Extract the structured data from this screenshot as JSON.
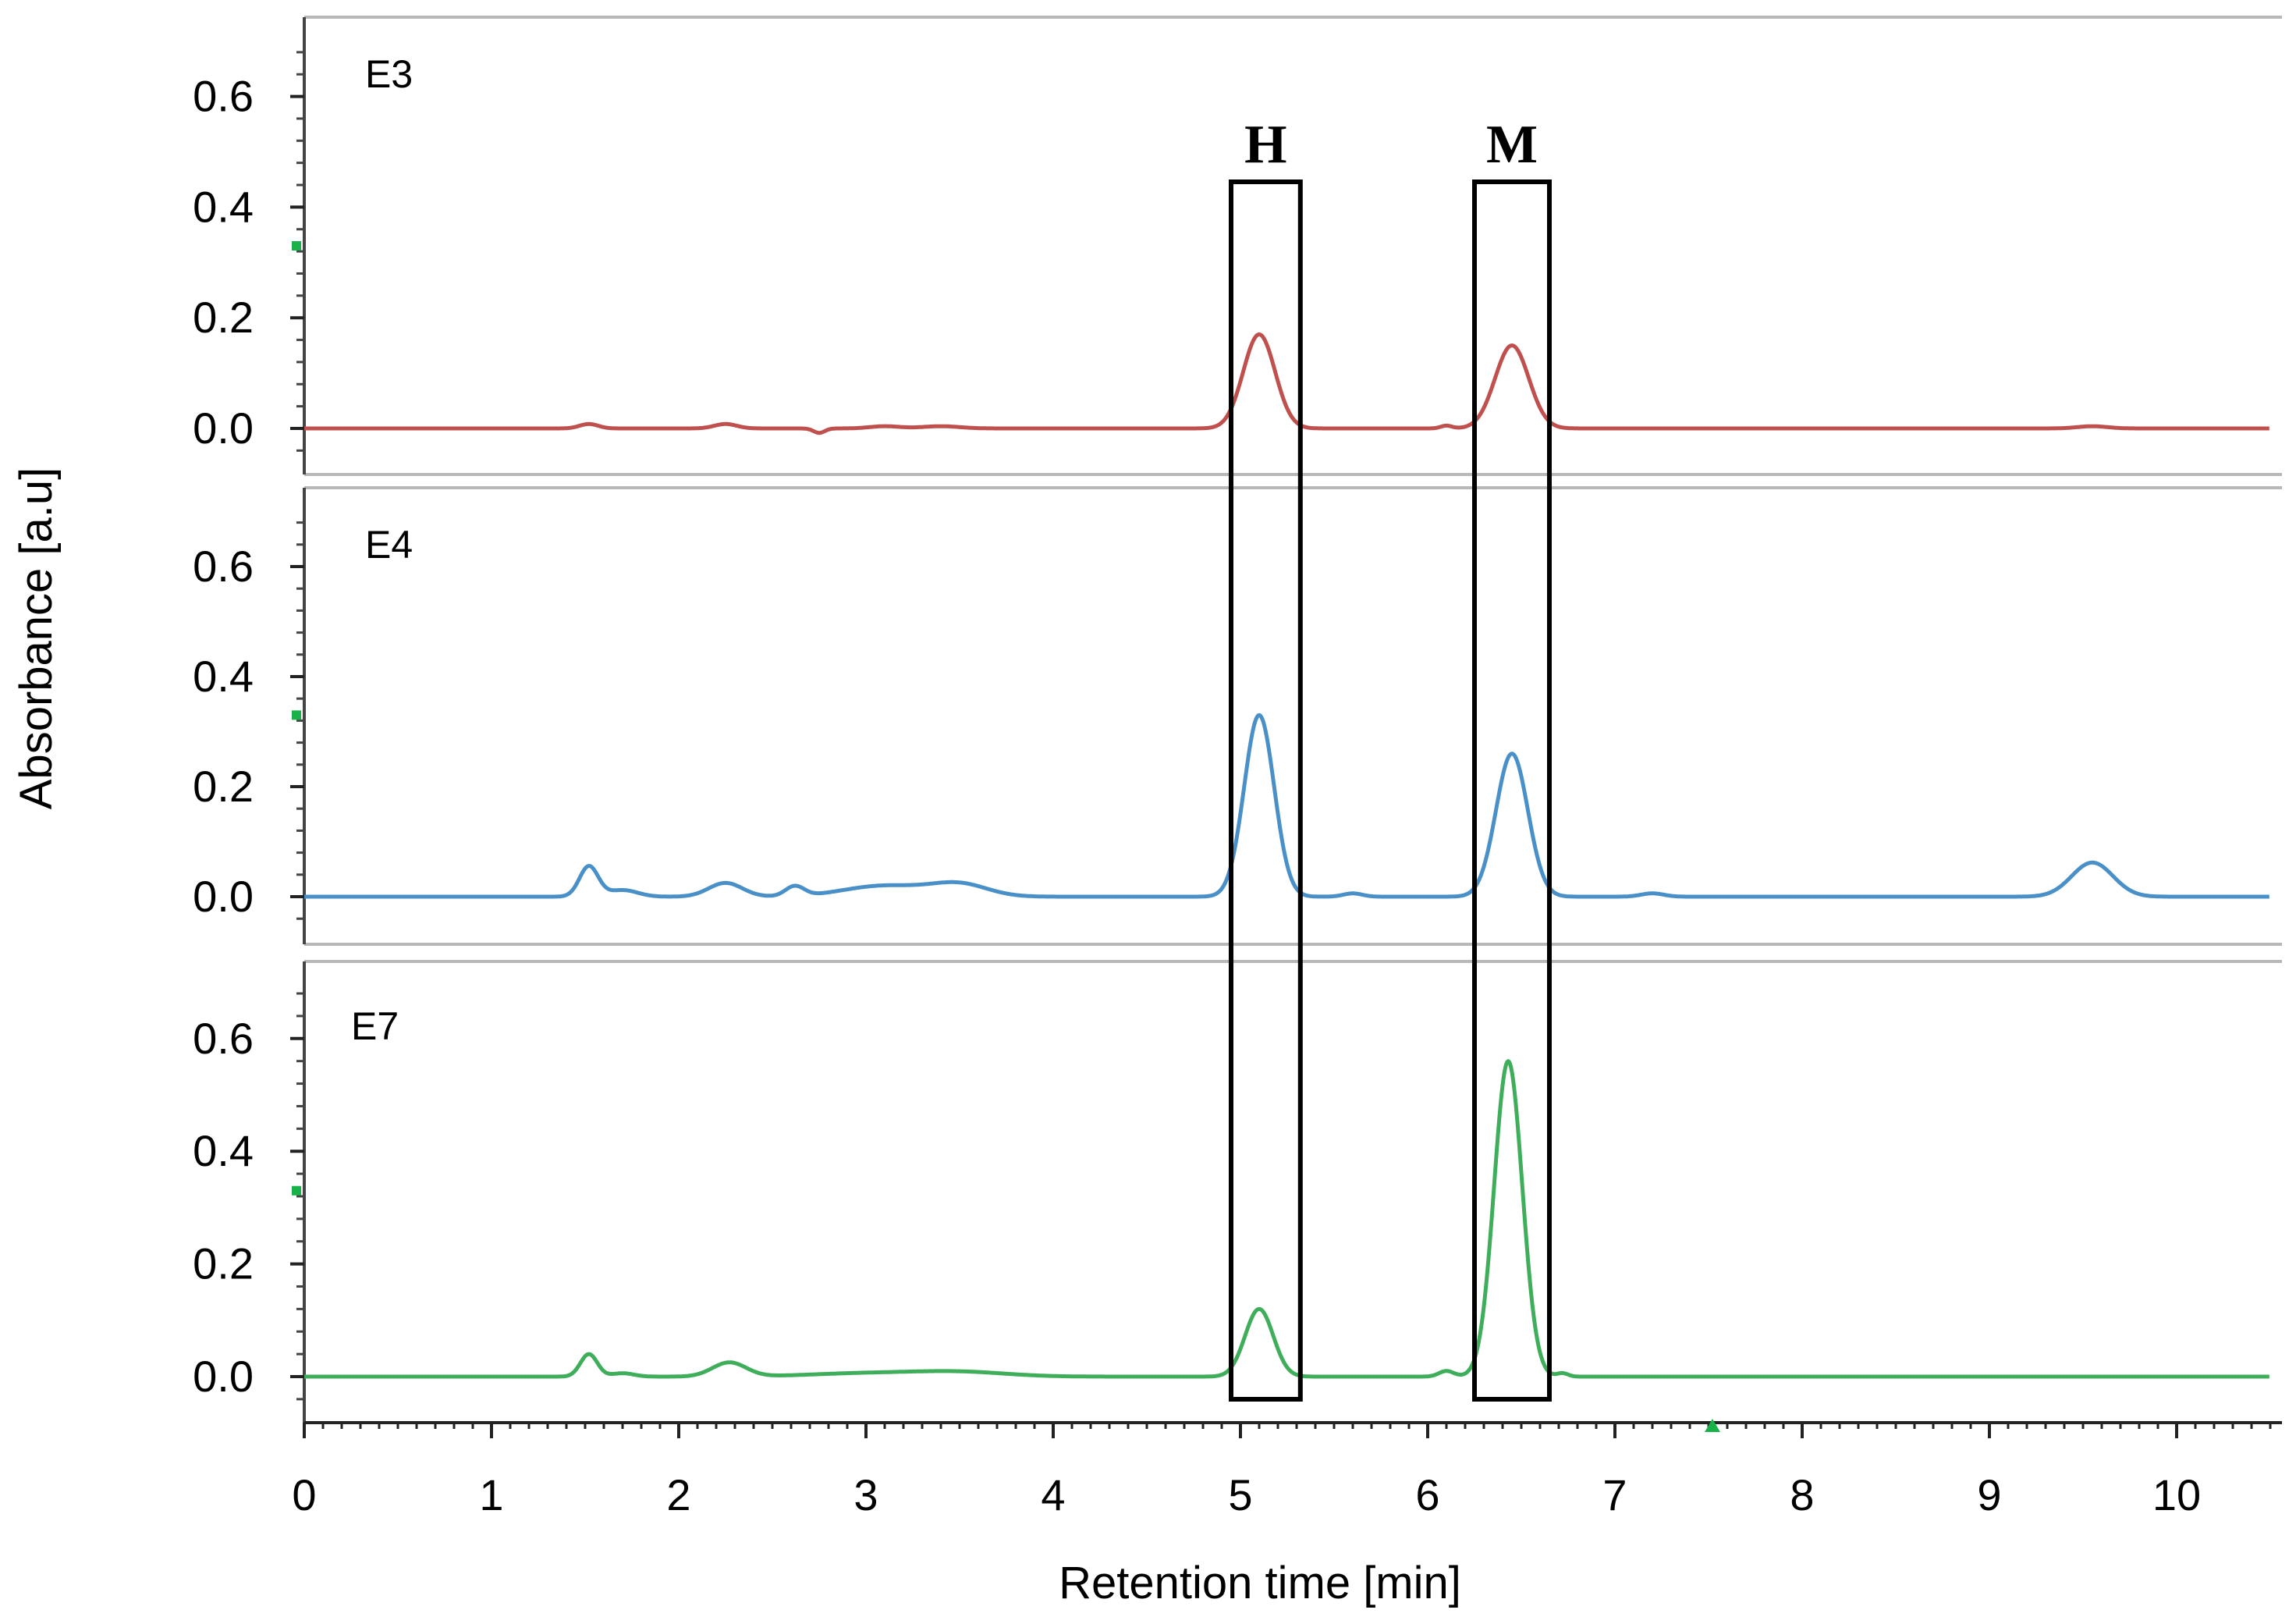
{
  "chart_data": {
    "type": "line",
    "xlabel": "Retention time [min]",
    "ylabel": "Absorbance [a.u]",
    "xlim": [
      0,
      10.5
    ],
    "x_ticks": [
      0,
      1,
      2,
      3,
      4,
      5,
      6,
      7,
      8,
      9,
      10
    ],
    "y_ticks": [
      "0.0",
      "0.2",
      "0.4",
      "0.6"
    ],
    "grid": false,
    "panels": [
      {
        "label": "E3",
        "color": "#c0504d",
        "ylim": [
          -0.08,
          0.72
        ],
        "baseline": 0.0,
        "peaks": [
          {
            "x": 1.52,
            "h": 0.008,
            "w": 0.05
          },
          {
            "x": 2.25,
            "h": 0.008,
            "w": 0.06
          },
          {
            "x": 2.75,
            "h": -0.008,
            "w": 0.03
          },
          {
            "x": 3.1,
            "h": 0.004,
            "w": 0.08
          },
          {
            "x": 3.4,
            "h": 0.004,
            "w": 0.1
          },
          {
            "x": 5.1,
            "h": 0.17,
            "w": 0.085
          },
          {
            "x": 6.1,
            "h": 0.005,
            "w": 0.03
          },
          {
            "x": 6.45,
            "h": 0.15,
            "w": 0.09
          },
          {
            "x": 9.55,
            "h": 0.004,
            "w": 0.08
          }
        ]
      },
      {
        "label": "E4",
        "color": "#4a90c8",
        "ylim": [
          -0.08,
          0.72
        ],
        "baseline": 0.0,
        "peaks": [
          {
            "x": 1.52,
            "h": 0.055,
            "w": 0.05
          },
          {
            "x": 1.7,
            "h": 0.012,
            "w": 0.08
          },
          {
            "x": 2.25,
            "h": 0.025,
            "w": 0.09
          },
          {
            "x": 2.62,
            "h": 0.018,
            "w": 0.05
          },
          {
            "x": 3.1,
            "h": 0.02,
            "w": 0.22
          },
          {
            "x": 3.5,
            "h": 0.022,
            "w": 0.15
          },
          {
            "x": 5.1,
            "h": 0.33,
            "w": 0.08
          },
          {
            "x": 5.6,
            "h": 0.006,
            "w": 0.05
          },
          {
            "x": 6.45,
            "h": 0.26,
            "w": 0.085
          },
          {
            "x": 7.2,
            "h": 0.006,
            "w": 0.06
          },
          {
            "x": 9.55,
            "h": 0.062,
            "w": 0.11
          }
        ]
      },
      {
        "label": "E7",
        "color": "#3fae5a",
        "ylim": [
          -0.08,
          0.72
        ],
        "baseline": 0.0,
        "peaks": [
          {
            "x": 1.52,
            "h": 0.04,
            "w": 0.045
          },
          {
            "x": 1.7,
            "h": 0.006,
            "w": 0.06
          },
          {
            "x": 2.27,
            "h": 0.025,
            "w": 0.09
          },
          {
            "x": 3.0,
            "h": 0.006,
            "w": 0.3
          },
          {
            "x": 3.5,
            "h": 0.008,
            "w": 0.25
          },
          {
            "x": 5.1,
            "h": 0.12,
            "w": 0.075
          },
          {
            "x": 6.1,
            "h": 0.01,
            "w": 0.04
          },
          {
            "x": 6.43,
            "h": 0.56,
            "w": 0.075
          },
          {
            "x": 6.72,
            "h": 0.006,
            "w": 0.03
          }
        ]
      }
    ],
    "boxes": [
      {
        "label": "H",
        "x_start": 4.95,
        "x_end": 5.32
      },
      {
        "label": "M",
        "x_start": 6.25,
        "x_end": 6.65
      }
    ]
  }
}
